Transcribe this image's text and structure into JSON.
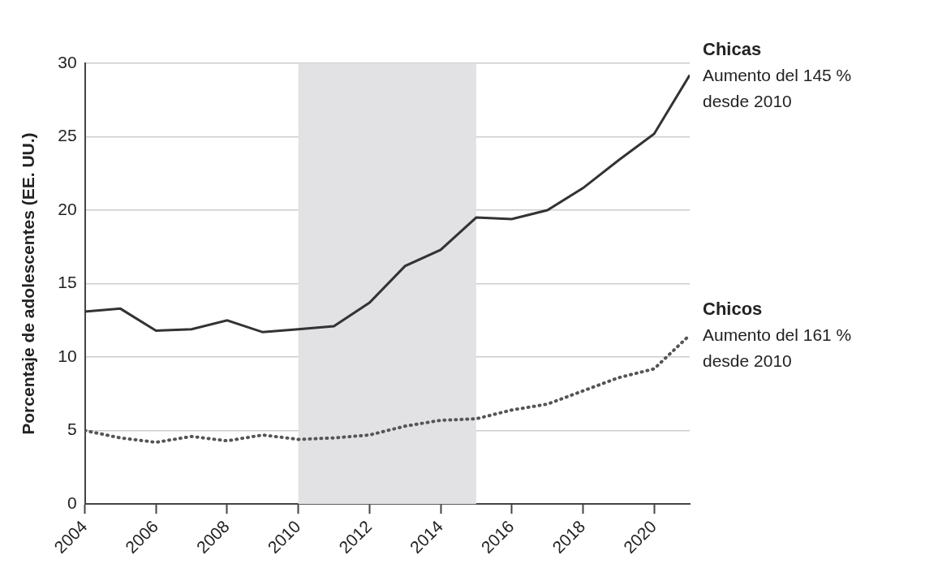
{
  "chart_data": {
    "type": "line",
    "y_label": "Porcentaje de adolescentes (EE. UU.)",
    "x": [
      2004,
      2005,
      2006,
      2007,
      2008,
      2009,
      2010,
      2011,
      2012,
      2013,
      2014,
      2015,
      2016,
      2017,
      2018,
      2019,
      2020,
      2021
    ],
    "series": [
      {
        "name": "Chicas",
        "color": "#333333",
        "line_style": "solid",
        "values": [
          13.1,
          13.3,
          11.8,
          11.9,
          12.5,
          11.7,
          11.9,
          12.1,
          13.7,
          16.2,
          17.3,
          19.5,
          19.4,
          20.0,
          21.5,
          23.4,
          25.2,
          29.2
        ]
      },
      {
        "name": "Chicos",
        "color": "#555555",
        "line_style": "dotted",
        "values": [
          5.0,
          4.5,
          4.2,
          4.6,
          4.3,
          4.7,
          4.4,
          4.5,
          4.7,
          5.3,
          5.7,
          5.8,
          6.4,
          6.8,
          7.7,
          8.6,
          9.2,
          11.5
        ]
      }
    ],
    "shaded_x": [
      2010,
      2015
    ],
    "annotations": [
      {
        "series": "Chicas",
        "lines": [
          "Aumento del 145 %",
          "desde 2010"
        ]
      },
      {
        "series": "Chicos",
        "lines": [
          "Aumento del 161 %",
          "desde 2010"
        ]
      }
    ],
    "xlim": [
      2004,
      2021
    ],
    "xticks": [
      2004,
      2006,
      2008,
      2010,
      2012,
      2014,
      2016,
      2018,
      2020
    ],
    "ylim": [
      0,
      30
    ],
    "yticks": [
      0,
      5,
      10,
      15,
      20,
      25,
      30
    ],
    "grid": true,
    "tick_labels": true
  }
}
